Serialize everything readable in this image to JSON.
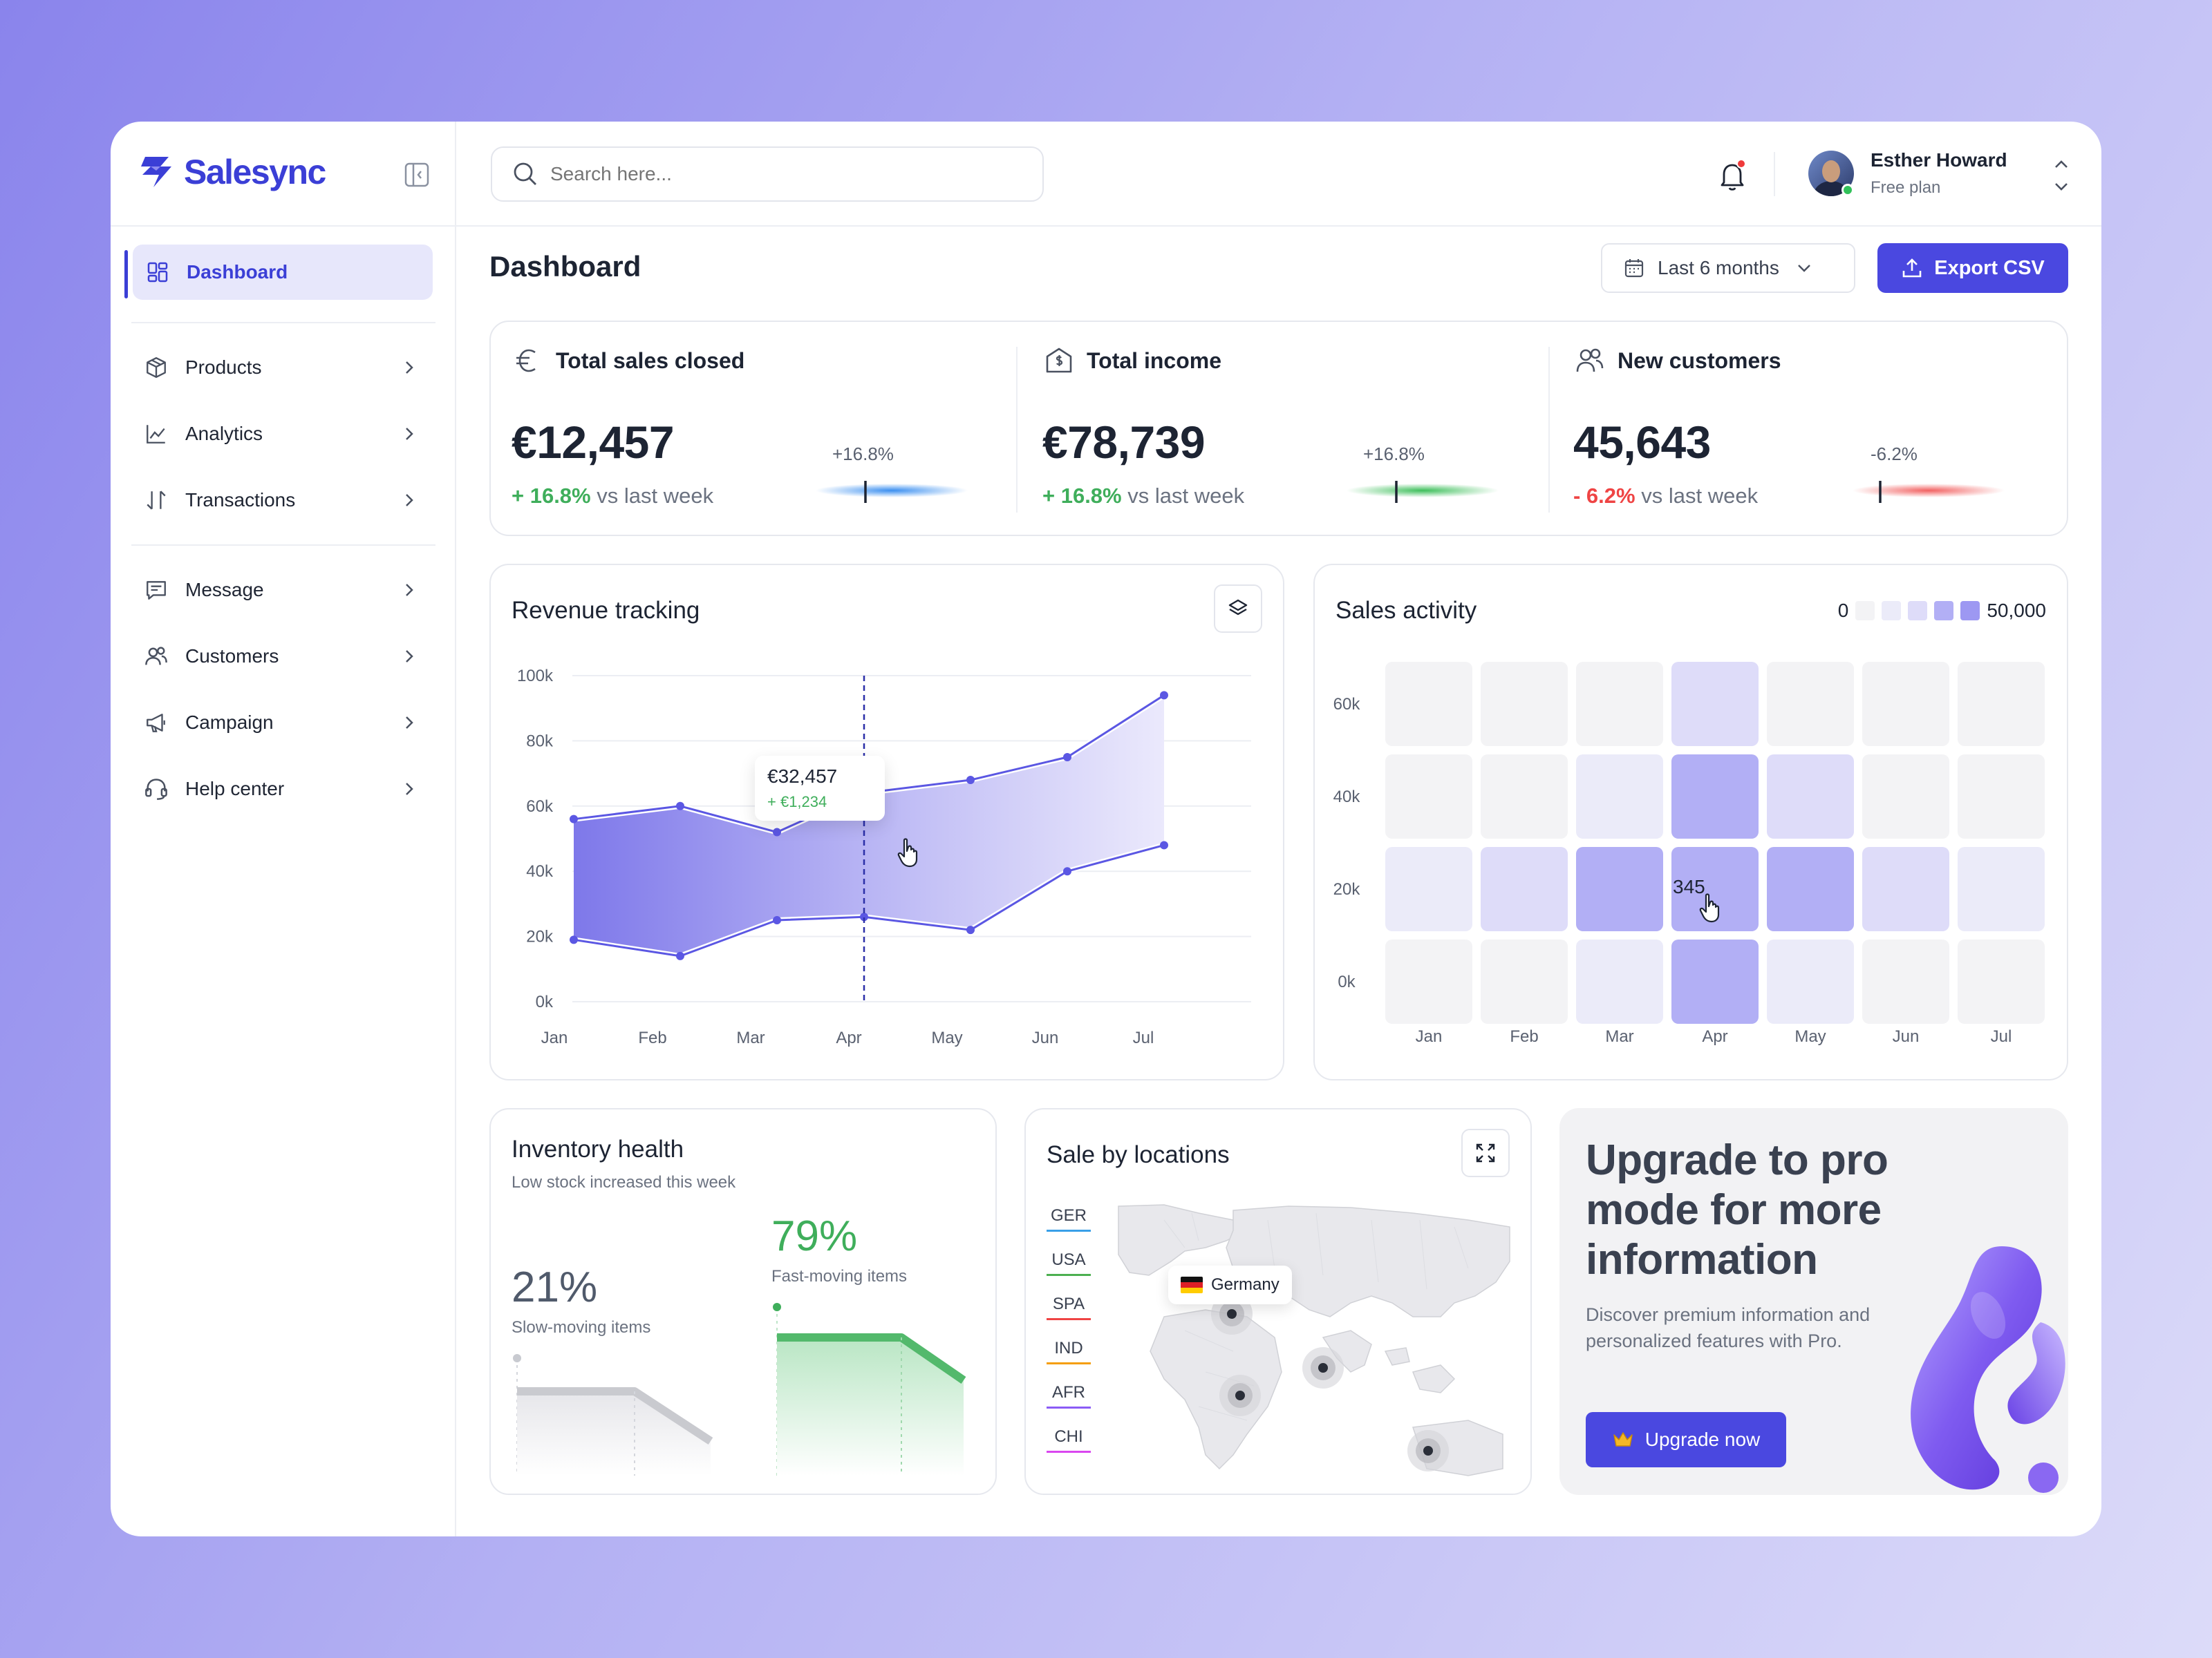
{
  "app": {
    "name": "Salesync"
  },
  "search": {
    "placeholder": "Search here..."
  },
  "user": {
    "name": "Esther Howard",
    "plan": "Free plan"
  },
  "sidebar": {
    "items": [
      {
        "label": "Dashboard",
        "icon": "grid-icon",
        "active": true
      },
      {
        "label": "Products",
        "icon": "box-icon"
      },
      {
        "label": "Analytics",
        "icon": "line-chart-icon"
      },
      {
        "label": "Transactions",
        "icon": "sort-arrows-icon"
      },
      {
        "label": "Message",
        "icon": "message-icon"
      },
      {
        "label": "Customers",
        "icon": "users-icon"
      },
      {
        "label": "Campaign",
        "icon": "megaphone-icon"
      },
      {
        "label": "Help center",
        "icon": "headset-icon"
      }
    ]
  },
  "header": {
    "title": "Dashboard",
    "range": "Last 6 months",
    "export_label": "Export CSV"
  },
  "kpis": [
    {
      "label": "Total sales closed",
      "value": "€12,457",
      "delta": "+ 16.8%",
      "delta_suffix": "vs last week",
      "pill": "+16.8%",
      "tone": "positive",
      "pill_color": "#3b8ff0",
      "icon": "euro-icon"
    },
    {
      "label": "Total income",
      "value": "€78,739",
      "delta": "+ 16.8%",
      "delta_suffix": "vs last week",
      "pill": "+16.8%",
      "tone": "positive",
      "pill_color": "#3fbf5c",
      "icon": "money-house-icon"
    },
    {
      "label": "New customers",
      "value": "45,643",
      "delta": "- 6.2%",
      "delta_suffix": "vs last week",
      "pill": "-6.2%",
      "tone": "negative",
      "pill_color": "#f26262",
      "icon": "users-icon"
    }
  ],
  "colors": {
    "accent": "#4a48e0",
    "positive": "#3fae5b",
    "negative": "#ef4444"
  },
  "revenue": {
    "title": "Revenue tracking",
    "tooltip": {
      "value": "€32,457",
      "delta": "+ €1,234"
    },
    "chart_data": {
      "type": "area",
      "categories": [
        "Jan",
        "Feb",
        "Mar",
        "Apr",
        "May",
        "Jun",
        "Jul"
      ],
      "x": [
        0,
        1.1,
        2.1,
        3.0,
        4.1,
        5.1,
        6.1
      ],
      "upper": [
        56,
        60,
        52,
        64,
        68,
        75,
        94
      ],
      "lower": [
        19,
        14,
        25,
        26,
        22,
        40,
        48
      ],
      "ylim": [
        0,
        100
      ],
      "yticks": [
        "0k",
        "20k",
        "40k",
        "60k",
        "80k",
        "100k"
      ],
      "marker_x": 3.0
    }
  },
  "activity": {
    "title": "Sales activity",
    "legend_min": "0",
    "legend_max": "50,000",
    "highlight": "345",
    "chart_data": {
      "type": "heatmap",
      "x": [
        "Jan",
        "Feb",
        "Mar",
        "Apr",
        "May",
        "Jun",
        "Jul"
      ],
      "y": [
        "60k",
        "40k",
        "20k",
        "0k"
      ],
      "levels": [
        [
          0,
          0,
          0,
          2,
          0,
          0,
          0
        ],
        [
          0,
          0,
          1,
          4,
          2,
          0,
          0
        ],
        [
          1,
          2,
          4,
          4,
          4,
          2,
          1
        ],
        [
          0,
          0,
          1,
          4,
          1,
          0,
          0
        ]
      ]
    }
  },
  "inventory": {
    "title": "Inventory health",
    "subtitle": "Low stock increased this week",
    "slow": {
      "value": "21%",
      "label": "Slow-moving items"
    },
    "fast": {
      "value": "79%",
      "label": "Fast-moving items"
    }
  },
  "locations": {
    "title": "Sale by locations",
    "items": [
      {
        "code": "GER",
        "color": "#3aa0e8"
      },
      {
        "code": "USA",
        "color": "#4caf50"
      },
      {
        "code": "SPA",
        "color": "#ef4444"
      },
      {
        "code": "IND",
        "color": "#f59e0b"
      },
      {
        "code": "AFR",
        "color": "#8b5cf6"
      },
      {
        "code": "CHI",
        "color": "#d946ef"
      }
    ],
    "tooltip": "Germany"
  },
  "upgrade": {
    "title": "Upgrade to pro mode for more information",
    "description": "Discover premium information and personalized features with Pro.",
    "button": "Upgrade now"
  }
}
